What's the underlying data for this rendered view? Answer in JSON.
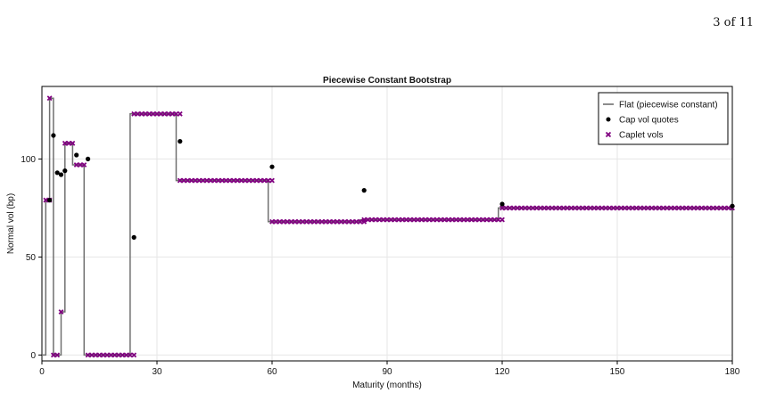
{
  "page": {
    "number": "3 of 11"
  },
  "colors": {
    "flat": "#707070",
    "cap": "#000000",
    "caplet": "#800080",
    "grid": "#e6e6e6"
  },
  "chart_data": {
    "type": "line",
    "title": "Piecewise Constant Bootstrap",
    "xlabel": "Maturity (months)",
    "ylabel": "Normal vol (bp)",
    "xlim": [
      0,
      180
    ],
    "ylim": [
      -3,
      137
    ],
    "xticks": [
      0,
      30,
      60,
      90,
      120,
      150,
      180
    ],
    "yticks": [
      0,
      50,
      100
    ],
    "grid": true,
    "legend_position": "top-right",
    "series": [
      {
        "name": "Flat (piecewise constant)",
        "type": "line",
        "x": [
          0,
          1,
          1,
          2,
          2,
          3,
          3,
          4,
          4,
          5,
          5,
          6,
          6,
          8,
          8,
          9,
          9,
          11,
          11,
          23,
          23,
          35,
          35,
          59,
          59,
          83,
          83,
          119,
          119,
          180
        ],
        "y": [
          0,
          0,
          79,
          79,
          131,
          131,
          0,
          0,
          0,
          0,
          22,
          22,
          108,
          108,
          97,
          97,
          97,
          97,
          0,
          0,
          123,
          123,
          89,
          89,
          68,
          68,
          69,
          69,
          75,
          75
        ]
      },
      {
        "name": "Cap vol quotes",
        "type": "scatter",
        "x": [
          2,
          3,
          4,
          5,
          6,
          9,
          12,
          24,
          36,
          60,
          84,
          120,
          180
        ],
        "y": [
          79,
          112,
          93,
          92,
          94,
          102,
          100,
          60,
          109,
          96,
          84,
          77,
          76
        ]
      },
      {
        "name": "Caplet vols",
        "type": "scatter",
        "segments": [
          {
            "from": 1,
            "to": 2,
            "step": 1,
            "value": 79
          },
          {
            "from": 2,
            "to": 2,
            "step": 1,
            "value": 131
          },
          {
            "from": 3,
            "to": 4,
            "step": 1,
            "value": 0
          },
          {
            "from": 5,
            "to": 5,
            "step": 1,
            "value": 22
          },
          {
            "from": 6,
            "to": 8,
            "step": 1,
            "value": 108
          },
          {
            "from": 9,
            "to": 11,
            "step": 1,
            "value": 97
          },
          {
            "from": 12,
            "to": 24,
            "step": 1,
            "value": 0
          },
          {
            "from": 24,
            "to": 36,
            "step": 1,
            "value": 123
          },
          {
            "from": 36,
            "to": 60,
            "step": 1,
            "value": 89
          },
          {
            "from": 60,
            "to": 84,
            "step": 1,
            "value": 68
          },
          {
            "from": 84,
            "to": 120,
            "step": 1,
            "value": 69
          },
          {
            "from": 120,
            "to": 180,
            "step": 1,
            "value": 75
          }
        ]
      }
    ]
  }
}
